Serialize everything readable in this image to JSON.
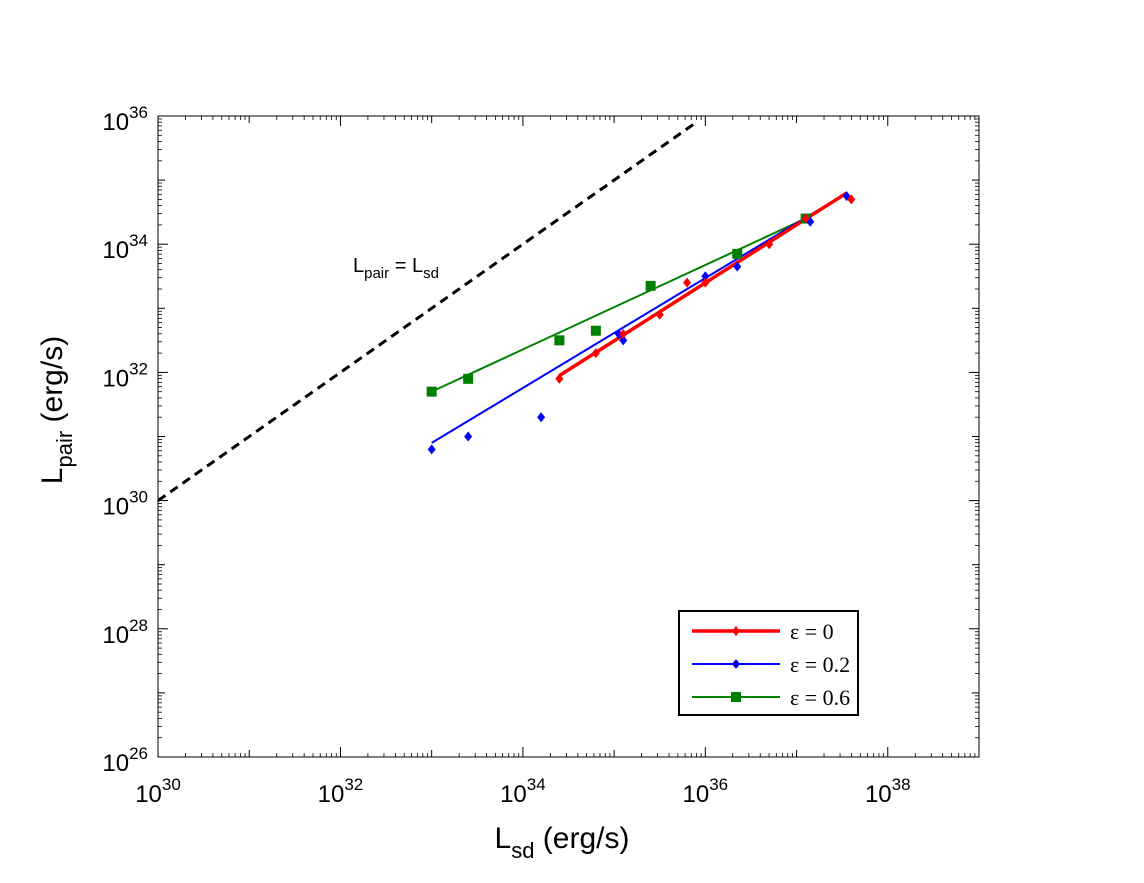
{
  "chart_data": {
    "type": "scatter",
    "title": "",
    "xlabel": {
      "main": "L",
      "sub": "sd",
      "rest": " (erg/s)"
    },
    "ylabel": {
      "main": "L",
      "sub": "pair",
      "rest": " (erg/s)"
    },
    "xscale": "log",
    "yscale": "log",
    "xlim_exp": [
      30,
      39
    ],
    "ylim_exp": [
      26,
      36
    ],
    "x_tick_exponents": [
      30,
      32,
      34,
      36,
      38
    ],
    "y_tick_exponents": [
      26,
      28,
      30,
      32,
      34,
      36
    ],
    "tick_base": "10",
    "grid": false,
    "legend_position": "bottom-right",
    "annotation": {
      "main_a": "L",
      "sub_a": "pair",
      "eq": " = ",
      "main_b": "L",
      "sub_b": "sd"
    },
    "reference_line": {
      "name": "Lpair = Lsd",
      "color": "#000000",
      "style": "dashed",
      "x_exp": [
        30,
        35.9
      ],
      "y_exp": [
        30,
        35.9
      ]
    },
    "series": [
      {
        "name": "ε = 0",
        "color": "#ff0000",
        "marker": "diamond",
        "points_exp": [
          [
            34.4,
            31.9
          ],
          [
            34.8,
            32.3
          ],
          [
            35.1,
            32.6
          ],
          [
            35.5,
            32.9
          ],
          [
            35.8,
            33.4
          ],
          [
            36.0,
            33.4
          ],
          [
            36.7,
            34.0
          ],
          [
            37.1,
            34.4
          ],
          [
            37.6,
            34.7
          ]
        ],
        "fit_exp": [
          [
            34.4,
            31.95
          ],
          [
            37.55,
            34.8
          ]
        ]
      },
      {
        "name": "ε = 0.2",
        "color": "#0000ff",
        "marker": "diamond",
        "points_exp": [
          [
            33.0,
            30.8
          ],
          [
            33.4,
            31.0
          ],
          [
            34.2,
            31.3
          ],
          [
            35.05,
            32.6
          ],
          [
            35.1,
            32.5
          ],
          [
            36.0,
            33.5
          ],
          [
            36.35,
            33.65
          ],
          [
            37.15,
            34.35
          ],
          [
            37.55,
            34.75
          ]
        ],
        "fit_exp": [
          [
            33.0,
            30.9
          ],
          [
            37.55,
            34.8
          ]
        ]
      },
      {
        "name": "ε = 0.6",
        "color": "#008000",
        "marker": "square",
        "points_exp": [
          [
            33.0,
            31.7
          ],
          [
            33.4,
            31.9
          ],
          [
            34.4,
            32.5
          ],
          [
            34.8,
            32.65
          ],
          [
            35.4,
            33.35
          ],
          [
            36.35,
            33.85
          ],
          [
            37.1,
            34.4
          ]
        ],
        "fit_exp": [
          [
            33.0,
            31.7
          ],
          [
            37.1,
            34.4
          ]
        ]
      }
    ]
  }
}
